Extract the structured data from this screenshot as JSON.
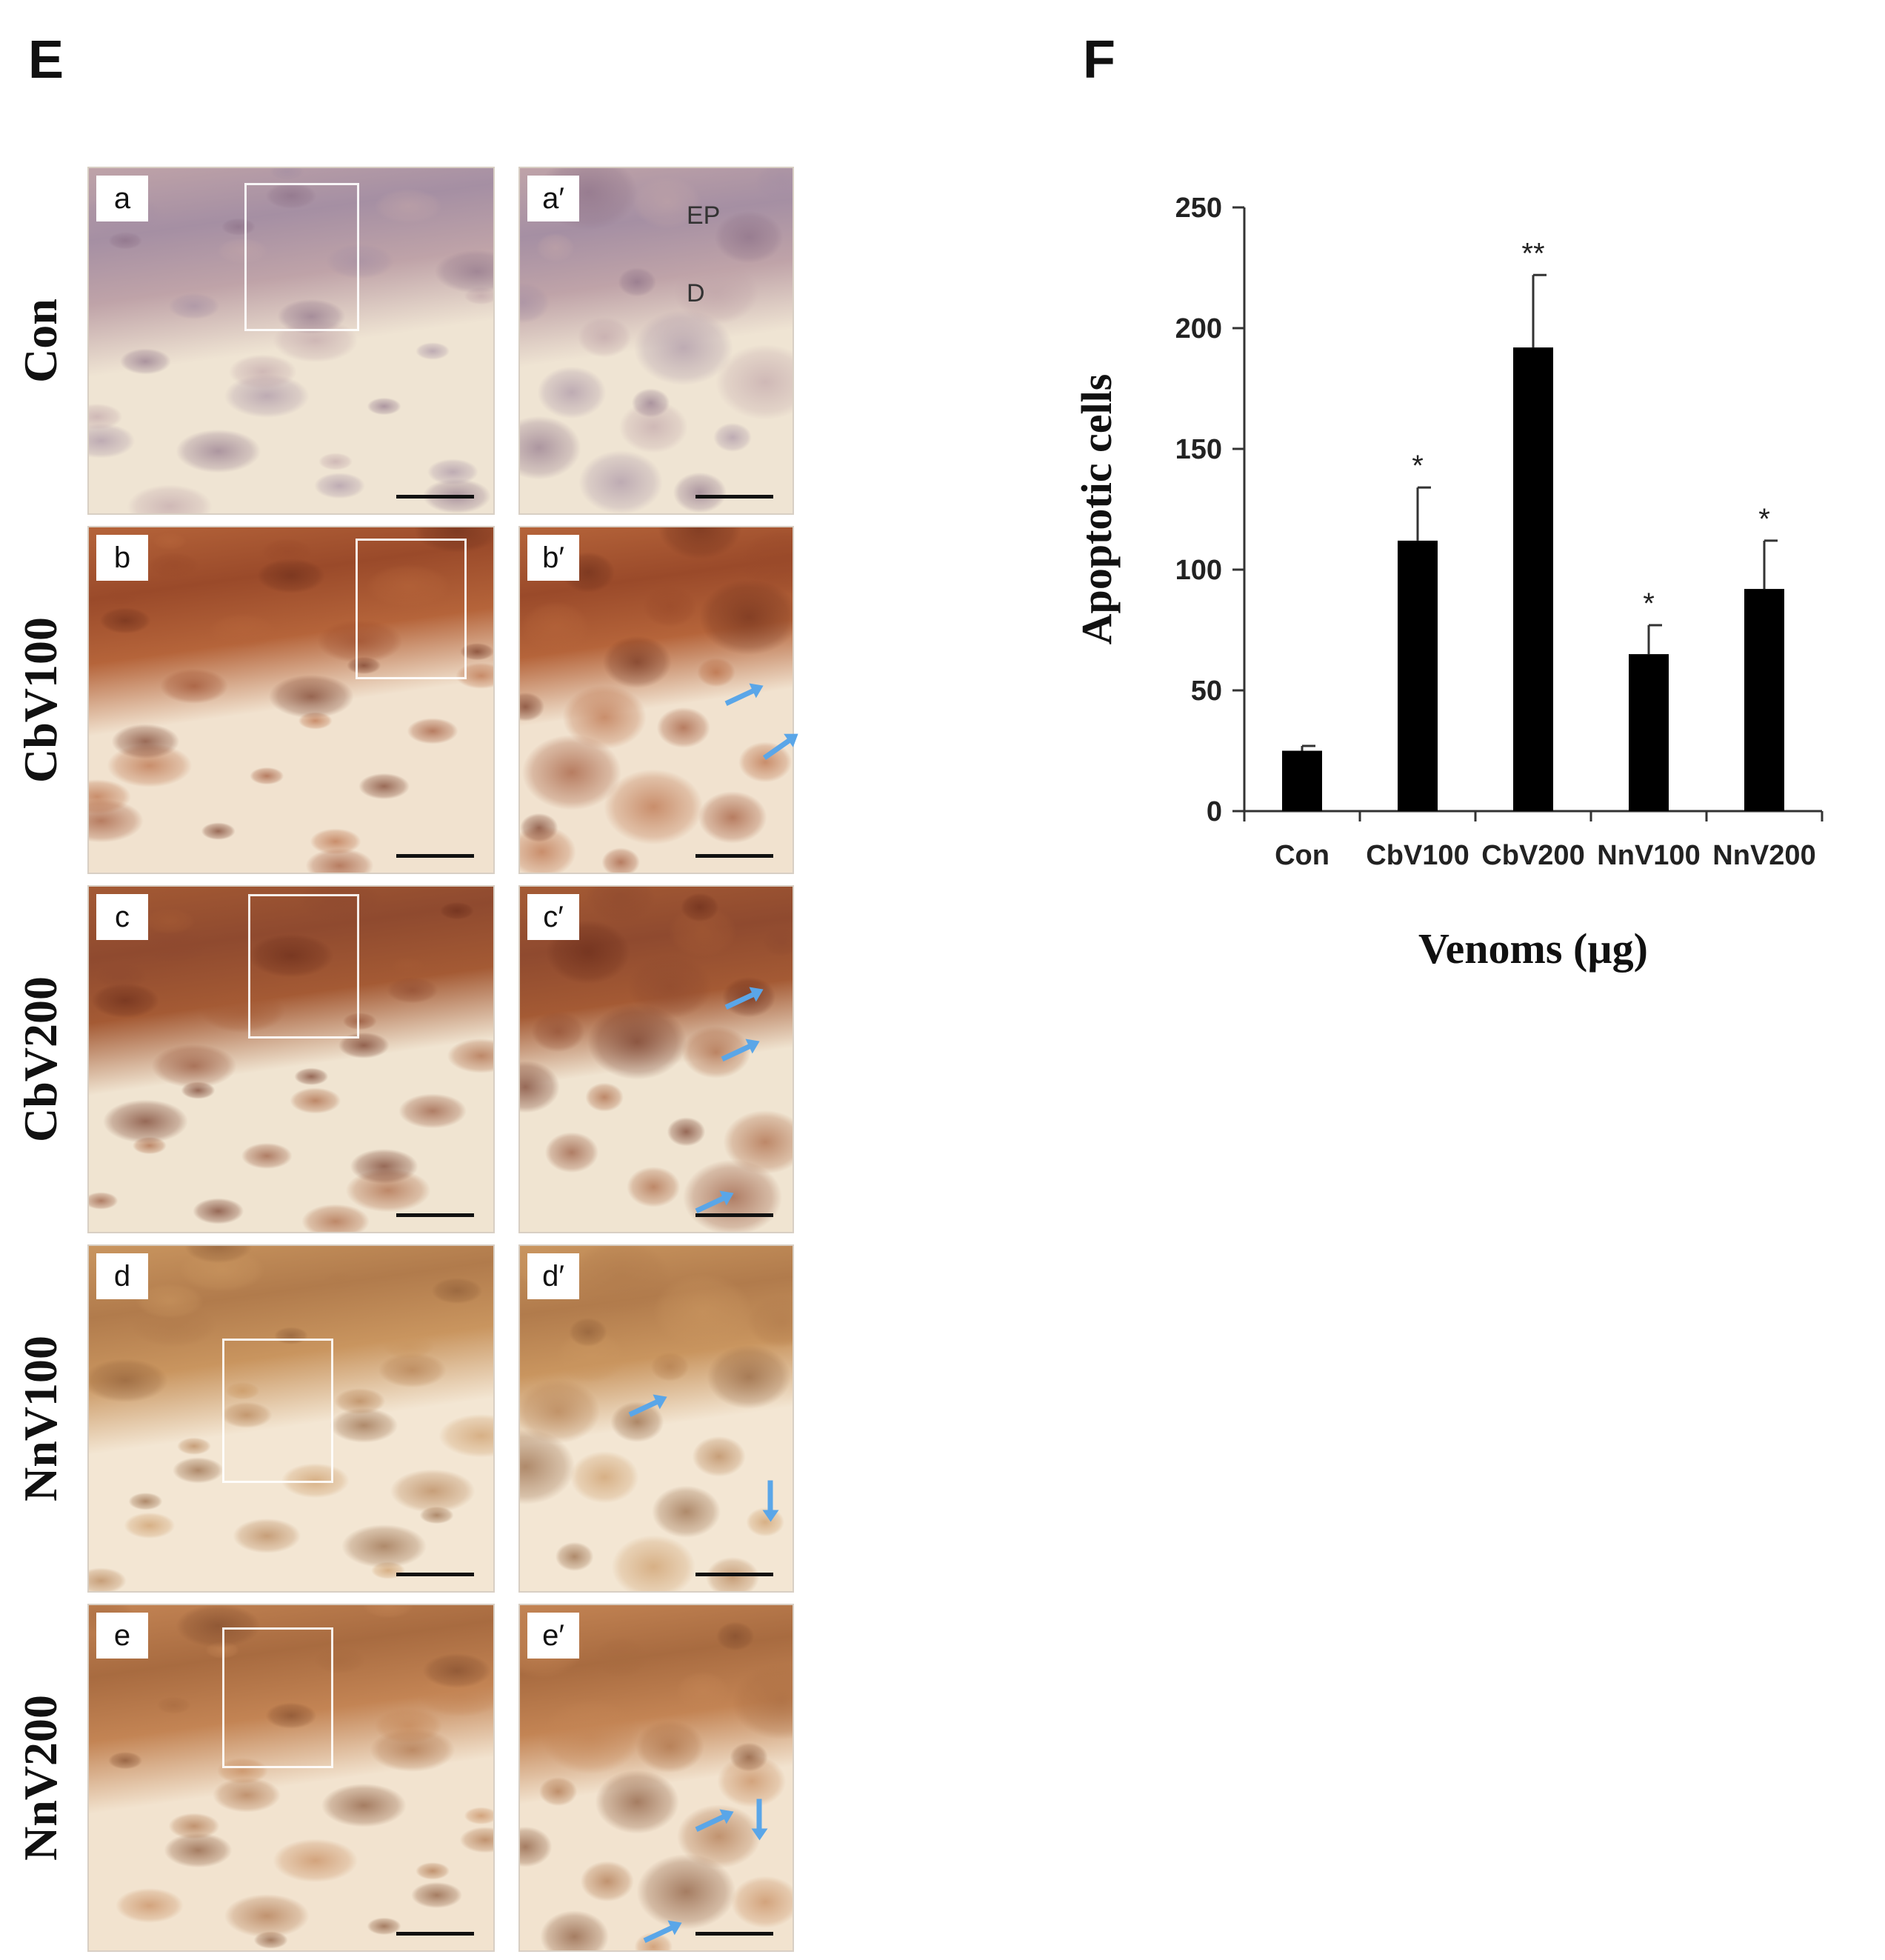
{
  "panels": {
    "left": {
      "letter": "E"
    },
    "right": {
      "letter": "F"
    }
  },
  "micrographs": {
    "rows": [
      {
        "label": "Con",
        "left_tag": "a",
        "right_tag": "a′",
        "colors": {
          "base": "#efe4d3",
          "band": "#bfa3a8",
          "deep": "#8b6f86",
          "accent": "#a58fa3"
        }
      },
      {
        "label": "CbV100",
        "left_tag": "b",
        "right_tag": "b′",
        "colors": {
          "base": "#f1e2cf",
          "band": "#b5643a",
          "deep": "#6e2f1b",
          "accent": "#9a4a2a"
        }
      },
      {
        "label": "CbV200",
        "left_tag": "c",
        "right_tag": "c′",
        "colors": {
          "base": "#f0e4d1",
          "band": "#a45a34",
          "deep": "#6a2c1a",
          "accent": "#8f4a2f"
        }
      },
      {
        "label": "NnV100",
        "left_tag": "d",
        "right_tag": "d′",
        "colors": {
          "base": "#f3e6d3",
          "band": "#c9955f",
          "deep": "#8d5c37",
          "accent": "#b17b4c"
        }
      },
      {
        "label": "NnV200",
        "left_tag": "e",
        "right_tag": "e′",
        "colors": {
          "base": "#f2e3cf",
          "band": "#c38454",
          "deep": "#7f4a2c",
          "accent": "#a86b40"
        }
      }
    ],
    "annotations": {
      "epidermis": "EP",
      "dermis": "D"
    },
    "arrow_color": "#5aa6e8"
  },
  "chart_data": {
    "type": "bar",
    "categories": [
      "Con",
      "CbV100",
      "CbV200",
      "NnV100",
      "NnV200"
    ],
    "values": [
      25,
      112,
      192,
      65,
      92
    ],
    "errors": [
      2,
      22,
      30,
      12,
      20
    ],
    "significance": [
      "",
      "*",
      "**",
      "*",
      "*"
    ],
    "xlabel": "Venoms (µg)",
    "ylabel": "Apoptotic cells",
    "ylim": [
      0,
      250
    ],
    "yticks": [
      0,
      50,
      100,
      150,
      200,
      250
    ],
    "bar_color": "#000000",
    "grid": false,
    "legend": "none"
  }
}
